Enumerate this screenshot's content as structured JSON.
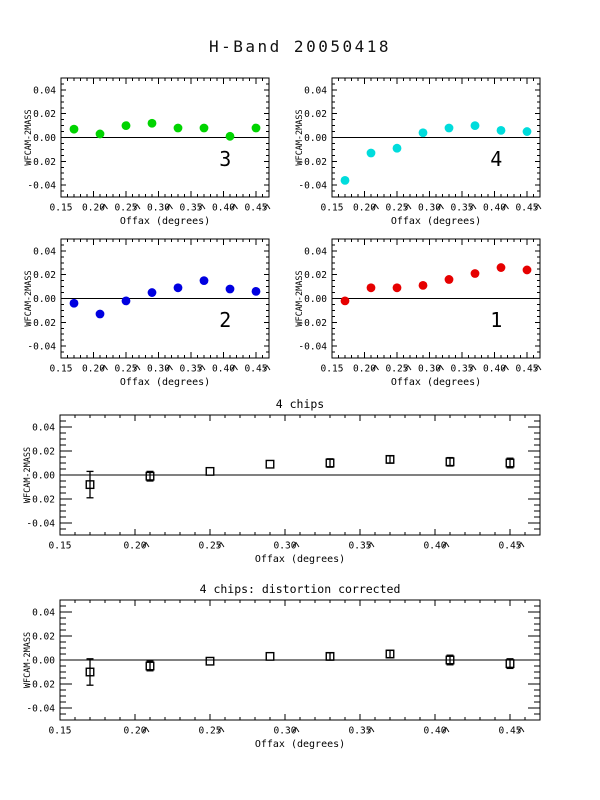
{
  "page": {
    "title": "H-Band 20050418",
    "background": "#ffffff",
    "axis_color": "#000000"
  },
  "axes": {
    "xlabel": "Offax (degrees)",
    "ylabel": "WFCAM-2MASS",
    "xlim": [
      0.15,
      0.47
    ],
    "ylim": [
      -0.05,
      0.05
    ],
    "x_minor_step": 0.01,
    "y_minor_step": 0.005,
    "xticks": [
      {
        "v": 0.15,
        "label": "0.15"
      },
      {
        "v": 0.2,
        "label": "0.20"
      },
      {
        "v": 0.25,
        "label": "0.25"
      },
      {
        "v": 0.3,
        "label": "0.30"
      },
      {
        "v": 0.35,
        "label": "0.35"
      },
      {
        "v": 0.4,
        "label": "0.40"
      },
      {
        "v": 0.45,
        "label": "0.45"
      }
    ],
    "yticks": [
      {
        "v": -0.04,
        "label": "-0.04"
      },
      {
        "v": -0.02,
        "label": "-0.02"
      },
      {
        "v": 0.0,
        "label": "0.00"
      },
      {
        "v": 0.02,
        "label": "0.02"
      },
      {
        "v": 0.04,
        "label": "0.04"
      }
    ]
  },
  "chart_data": [
    {
      "id": "chip3",
      "type": "scatter",
      "title": "",
      "chip_label": "3",
      "color": "#00d400",
      "marker": "circle",
      "xlabel": "Offax (degrees)",
      "ylabel": "WFCAM-2MASS",
      "x": [
        0.17,
        0.21,
        0.25,
        0.29,
        0.33,
        0.37,
        0.41,
        0.45
      ],
      "y": [
        0.007,
        0.003,
        0.01,
        0.012,
        0.008,
        0.008,
        0.001,
        0.008
      ]
    },
    {
      "id": "chip4",
      "type": "scatter",
      "title": "",
      "chip_label": "4",
      "color": "#00dcdc",
      "marker": "circle",
      "xlabel": "Offax (degrees)",
      "ylabel": "WFCAM-2MASS",
      "x": [
        0.17,
        0.21,
        0.25,
        0.29,
        0.33,
        0.37,
        0.41,
        0.45
      ],
      "y": [
        -0.036,
        -0.013,
        -0.009,
        0.004,
        0.008,
        0.01,
        0.006,
        0.005
      ]
    },
    {
      "id": "chip2",
      "type": "scatter",
      "title": "",
      "chip_label": "2",
      "color": "#0000e0",
      "marker": "circle",
      "xlabel": "Offax (degrees)",
      "ylabel": "WFCAM-2MASS",
      "x": [
        0.17,
        0.21,
        0.25,
        0.29,
        0.33,
        0.37,
        0.41,
        0.45
      ],
      "y": [
        -0.004,
        -0.013,
        -0.002,
        0.005,
        0.009,
        0.015,
        0.008,
        0.006
      ]
    },
    {
      "id": "chip1",
      "type": "scatter",
      "title": "",
      "chip_label": "1",
      "color": "#e60000",
      "marker": "circle",
      "xlabel": "Offax (degrees)",
      "ylabel": "WFCAM-2MASS",
      "x": [
        0.17,
        0.21,
        0.25,
        0.29,
        0.33,
        0.37,
        0.41,
        0.45
      ],
      "y": [
        -0.002,
        0.009,
        0.009,
        0.011,
        0.016,
        0.021,
        0.026,
        0.024
      ]
    },
    {
      "id": "combined",
      "type": "scatter",
      "title": "4 chips",
      "chip_label": "",
      "color": "#000000",
      "marker": "square-open",
      "xlabel": "Offax (degrees)",
      "ylabel": "WFCAM-2MASS",
      "x": [
        0.17,
        0.21,
        0.25,
        0.29,
        0.33,
        0.37,
        0.41,
        0.45
      ],
      "y": [
        -0.008,
        -0.001,
        0.003,
        0.009,
        0.01,
        0.013,
        0.011,
        0.01
      ],
      "yerr": [
        0.011,
        0.004,
        0.001,
        0.001,
        0.0035,
        0.003,
        0.0035,
        0.004
      ]
    },
    {
      "id": "corrected",
      "type": "scatter",
      "title": "4 chips: distortion corrected",
      "chip_label": "",
      "color": "#000000",
      "marker": "square-open",
      "xlabel": "Offax (degrees)",
      "ylabel": "WFCAM-2MASS",
      "x": [
        0.17,
        0.21,
        0.25,
        0.29,
        0.33,
        0.37,
        0.41,
        0.45
      ],
      "y": [
        -0.01,
        -0.005,
        -0.001,
        0.003,
        0.003,
        0.005,
        0.0,
        -0.003
      ],
      "yerr": [
        0.011,
        0.004,
        0.001,
        0.001,
        0.003,
        0.003,
        0.004,
        0.004
      ]
    }
  ]
}
